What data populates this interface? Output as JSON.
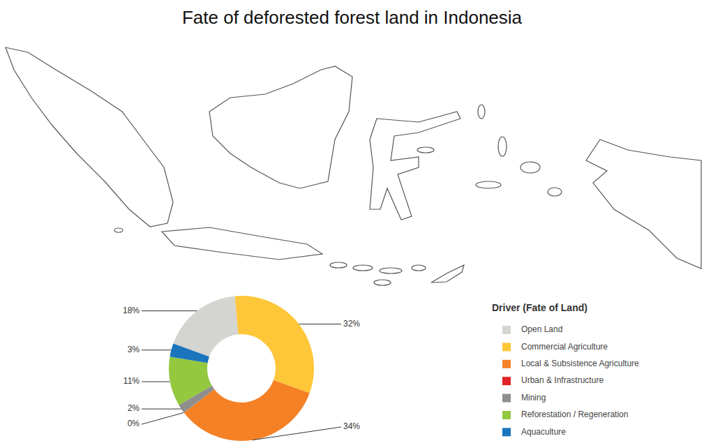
{
  "chart_data": {
    "type": "pie",
    "title": "Fate of deforested forest land in Indonesia",
    "legend_title": "Driver (Fate of Land)",
    "categories": [
      "Open Land",
      "Commercial Agriculture",
      "Local & Subsistence Agriculture",
      "Urban & Infrastructure",
      "Mining",
      "Reforestation / Regeneration",
      "Aquaculture"
    ],
    "values": [
      18,
      32,
      34,
      0,
      2,
      11,
      3
    ],
    "value_labels": [
      "18%",
      "32%",
      "34%",
      "0%",
      "2%",
      "11%",
      "3%"
    ],
    "colors": [
      "#d4d4d1",
      "#fec73a",
      "#f58126",
      "#e2232a",
      "#8e8e8e",
      "#93c83f",
      "#1b75bc"
    ],
    "data_labels": true,
    "legend": "lower right"
  }
}
